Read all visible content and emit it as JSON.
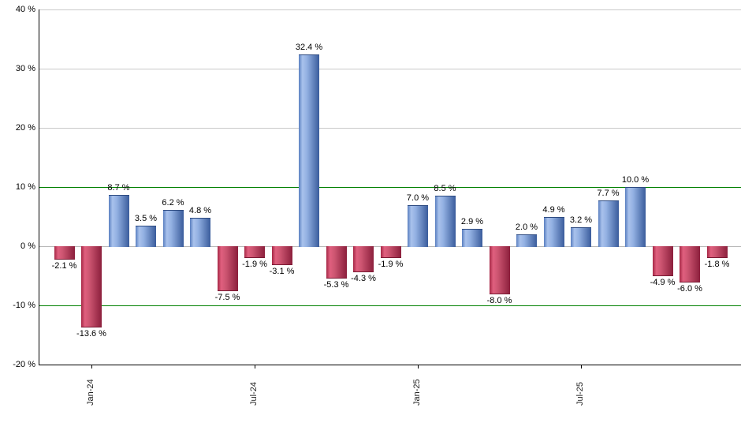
{
  "chart_data": {
    "type": "bar",
    "title": "",
    "xlabel": "",
    "ylabel": "",
    "ylim": [
      -20,
      40
    ],
    "grid": true,
    "values": [
      -2.1,
      -13.6,
      8.7,
      3.5,
      6.2,
      4.8,
      -7.5,
      -1.9,
      -3.1,
      32.4,
      -5.3,
      -4.3,
      -1.9,
      7.0,
      8.5,
      2.9,
      -8.0,
      2.0,
      4.9,
      3.2,
      7.7,
      10.0,
      -4.9,
      -6.0,
      -1.8
    ],
    "bar_labels": [
      "-2.1 %",
      "-13.6 %",
      "8.7 %",
      "3.5 %",
      "6.2 %",
      "4.8 %",
      "-7.5 %",
      "-1.9 %",
      "-3.1 %",
      "32.4 %",
      "-5.3 %",
      "-4.3 %",
      "-1.9 %",
      "7.0 %",
      "8.5 %",
      "2.9 %",
      "-8.0 %",
      "2.0 %",
      "4.9 %",
      "3.2 %",
      "7.7 %",
      "10.0 %",
      "-4.9 %",
      "-6.0 %",
      "-1.8 %"
    ],
    "y_ticks": [
      {
        "label": "40 %",
        "value": 40
      },
      {
        "label": "30 %",
        "value": 30
      },
      {
        "label": "20 %",
        "value": 20
      },
      {
        "label": "10 %",
        "value": 10
      },
      {
        "label": "0 %",
        "value": 0
      },
      {
        "label": "-10 %",
        "value": -10
      },
      {
        "label": "-20 %",
        "value": -20
      }
    ],
    "x_ticks": [
      {
        "label": "Jan-24",
        "bar_index": 2
      },
      {
        "label": "Jul-24",
        "bar_index": 8
      },
      {
        "label": "Jan-25",
        "bar_index": 14
      },
      {
        "label": "Jul-25",
        "bar_index": 20
      }
    ],
    "colors": {
      "positive_gradient": [
        "#5a7fc0 0%",
        "#a9c2ec 18%",
        "#92b0e2 40%",
        "#3a5c9c 100%"
      ],
      "negative_gradient": [
        "#a52745 0%",
        "#e0607f 18%",
        "#cc5571 40%",
        "#8c1f3c 100%"
      ],
      "positive_cap": "#2d4a80",
      "negative_cap": "#7a1a33",
      "green_gridline": "#008000",
      "gridline": "#c9c9c9",
      "zero_line": "#b8b8b8",
      "axis": "#000000",
      "label_text": "#000000"
    }
  }
}
